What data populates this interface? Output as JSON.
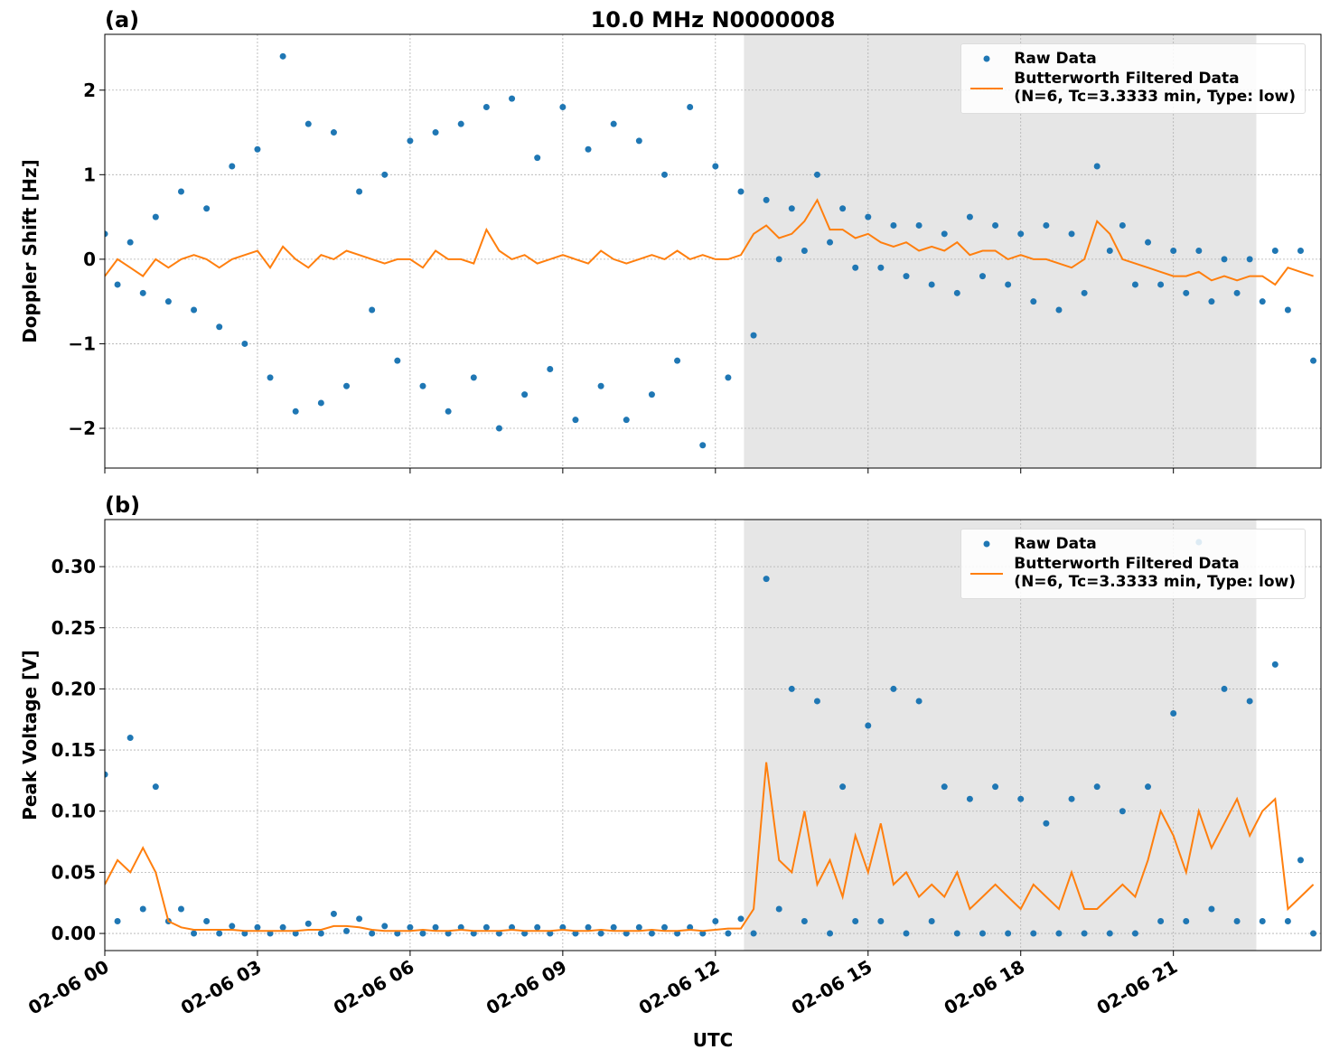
{
  "chart_data": [
    {
      "type": "line",
      "panel_label": "(a)",
      "title": "10.0 MHz N0000008",
      "ylabel": "Doppler Shift [Hz]",
      "xlim": [
        0,
        23.9
      ],
      "ylim": [
        -2.47,
        2.66
      ],
      "xticks": [
        0,
        3,
        6,
        9,
        12,
        15,
        18,
        21
      ],
      "yticks": [
        {
          "value": -2,
          "label": "−2"
        },
        {
          "value": -1,
          "label": "−1"
        },
        0,
        1,
        2
      ],
      "grid": true,
      "legend": "upper right",
      "shaded_span": [
        12.56,
        22.63
      ],
      "shade_color": "#e6e6e6",
      "x": [
        0,
        0.25,
        0.5,
        0.75,
        1,
        1.25,
        1.5,
        1.75,
        2,
        2.25,
        2.5,
        2.75,
        3,
        3.25,
        3.5,
        3.75,
        4,
        4.25,
        4.5,
        4.75,
        5,
        5.25,
        5.5,
        5.75,
        6,
        6.25,
        6.5,
        6.75,
        7,
        7.25,
        7.5,
        7.75,
        8,
        8.25,
        8.5,
        8.75,
        9,
        9.25,
        9.5,
        9.75,
        10,
        10.25,
        10.5,
        10.75,
        11,
        11.25,
        11.5,
        11.75,
        12,
        12.25,
        12.5,
        12.75,
        13,
        13.25,
        13.5,
        13.75,
        14,
        14.25,
        14.5,
        14.75,
        15,
        15.25,
        15.5,
        15.75,
        16,
        16.25,
        16.5,
        16.75,
        17,
        17.25,
        17.5,
        17.75,
        18,
        18.25,
        18.5,
        18.75,
        19,
        19.25,
        19.5,
        19.75,
        20,
        20.25,
        20.5,
        20.75,
        21,
        21.25,
        21.5,
        21.75,
        22,
        22.25,
        22.5,
        22.75,
        23,
        23.25,
        23.5,
        23.75
      ],
      "series": [
        {
          "name": "Raw Data",
          "style": "markers",
          "color": "#1f77b4",
          "values": [
            0.3,
            -0.3,
            0.2,
            -0.4,
            0.5,
            -0.5,
            0.8,
            -0.6,
            0.6,
            -0.8,
            1.1,
            -1.0,
            1.3,
            -1.4,
            2.4,
            -1.8,
            1.6,
            -1.7,
            1.5,
            -1.5,
            0.8,
            -0.6,
            1.0,
            -1.2,
            1.4,
            -1.5,
            1.5,
            -1.8,
            1.6,
            -1.4,
            1.8,
            -2.0,
            1.9,
            -1.6,
            1.2,
            -1.3,
            1.8,
            -1.9,
            1.3,
            -1.5,
            1.6,
            -1.9,
            1.4,
            -1.6,
            1.0,
            -1.2,
            1.8,
            -2.2,
            1.1,
            -1.4,
            0.8,
            -0.9,
            0.7,
            0.0,
            0.6,
            0.1,
            1.0,
            0.2,
            0.6,
            -0.1,
            0.5,
            -0.1,
            0.4,
            -0.2,
            0.4,
            -0.3,
            0.3,
            -0.4,
            0.5,
            -0.2,
            0.4,
            -0.3,
            0.3,
            -0.5,
            0.4,
            -0.6,
            0.3,
            -0.4,
            1.1,
            0.1,
            0.4,
            -0.3,
            0.2,
            -0.3,
            0.1,
            -0.4,
            0.1,
            -0.5,
            0.0,
            -0.4,
            0.0,
            -0.5,
            0.1,
            -0.6,
            0.1,
            -1.2
          ]
        },
        {
          "name": "Butterworth Filtered Data\n(N=6, Tc=3.3333 min, Type: low)",
          "style": "line",
          "color": "#ff7f0e",
          "values": [
            -0.2,
            0.0,
            -0.1,
            -0.2,
            0.0,
            -0.1,
            0.0,
            0.05,
            0.0,
            -0.1,
            0.0,
            0.05,
            0.1,
            -0.1,
            0.15,
            0.0,
            -0.1,
            0.05,
            0.0,
            0.1,
            0.05,
            0.0,
            -0.05,
            0.0,
            0.0,
            -0.1,
            0.1,
            0.0,
            0.0,
            -0.05,
            0.35,
            0.1,
            0.0,
            0.05,
            -0.05,
            0.0,
            0.05,
            0.0,
            -0.05,
            0.1,
            0.0,
            -0.05,
            0.0,
            0.05,
            0.0,
            0.1,
            0.0,
            0.05,
            0.0,
            0.0,
            0.05,
            0.3,
            0.4,
            0.25,
            0.3,
            0.45,
            0.7,
            0.35,
            0.35,
            0.25,
            0.3,
            0.2,
            0.15,
            0.2,
            0.1,
            0.15,
            0.1,
            0.2,
            0.05,
            0.1,
            0.1,
            0.0,
            0.05,
            0.0,
            0.0,
            -0.05,
            -0.1,
            0.0,
            0.45,
            0.3,
            0.0,
            -0.05,
            -0.1,
            -0.15,
            -0.2,
            -0.2,
            -0.15,
            -0.25,
            -0.2,
            -0.25,
            -0.2,
            -0.2,
            -0.3,
            -0.1,
            -0.15,
            -0.2
          ]
        }
      ]
    },
    {
      "type": "line",
      "panel_label": "(b)",
      "ylabel": "Peak Voltage [V]",
      "xlabel": "UTC",
      "xlim": [
        0,
        23.9
      ],
      "ylim": [
        -0.014,
        0.3385
      ],
      "xticks": [
        {
          "value": 0,
          "label": "02-06 00"
        },
        {
          "value": 3,
          "label": "02-06 03"
        },
        {
          "value": 6,
          "label": "02-06 06"
        },
        {
          "value": 9,
          "label": "02-06 09"
        },
        {
          "value": 12,
          "label": "02-06 12"
        },
        {
          "value": 15,
          "label": "02-06 15"
        },
        {
          "value": 18,
          "label": "02-06 18"
        },
        {
          "value": 21,
          "label": "02-06 21"
        }
      ],
      "yticks": [
        {
          "value": 0,
          "label": "0.00"
        },
        0.05,
        {
          "value": 0.1,
          "label": "0.10"
        },
        0.15,
        {
          "value": 0.2,
          "label": "0.20"
        },
        0.25,
        {
          "value": 0.3,
          "label": "0.30"
        }
      ],
      "grid": true,
      "legend": "upper right",
      "shaded_span": [
        12.56,
        22.63
      ],
      "shade_color": "#e6e6e6",
      "x": [
        0,
        0.25,
        0.5,
        0.75,
        1,
        1.25,
        1.5,
        1.75,
        2,
        2.25,
        2.5,
        2.75,
        3,
        3.25,
        3.5,
        3.75,
        4,
        4.25,
        4.5,
        4.75,
        5,
        5.25,
        5.5,
        5.75,
        6,
        6.25,
        6.5,
        6.75,
        7,
        7.25,
        7.5,
        7.75,
        8,
        8.25,
        8.5,
        8.75,
        9,
        9.25,
        9.5,
        9.75,
        10,
        10.25,
        10.5,
        10.75,
        11,
        11.25,
        11.5,
        11.75,
        12,
        12.25,
        12.5,
        12.75,
        13,
        13.25,
        13.5,
        13.75,
        14,
        14.25,
        14.5,
        14.75,
        15,
        15.25,
        15.5,
        15.75,
        16,
        16.25,
        16.5,
        16.75,
        17,
        17.25,
        17.5,
        17.75,
        18,
        18.25,
        18.5,
        18.75,
        19,
        19.25,
        19.5,
        19.75,
        20,
        20.25,
        20.5,
        20.75,
        21,
        21.25,
        21.5,
        21.75,
        22,
        22.25,
        22.5,
        22.75,
        23,
        23.25,
        23.5,
        23.75
      ],
      "series": [
        {
          "name": "Raw Data",
          "style": "markers",
          "color": "#1f77b4",
          "values": [
            0.13,
            0.01,
            0.16,
            0.02,
            0.12,
            0.01,
            0.02,
            0.0,
            0.01,
            0.0,
            0.006,
            0.0,
            0.005,
            0.0,
            0.005,
            0.0,
            0.008,
            0.0,
            0.016,
            0.002,
            0.012,
            0.0,
            0.006,
            0.0,
            0.005,
            0.0,
            0.005,
            0.0,
            0.005,
            0.0,
            0.005,
            0.0,
            0.005,
            0.0,
            0.005,
            0.0,
            0.005,
            0.0,
            0.005,
            0.0,
            0.005,
            0.0,
            0.005,
            0.0,
            0.005,
            0.0,
            0.005,
            0.0,
            0.01,
            0.0,
            0.012,
            0.0,
            0.29,
            0.02,
            0.2,
            0.01,
            0.19,
            0.0,
            0.12,
            0.01,
            0.17,
            0.01,
            0.2,
            0.0,
            0.19,
            0.01,
            0.12,
            0.0,
            0.11,
            0.0,
            0.12,
            0.0,
            0.11,
            0.0,
            0.09,
            0.0,
            0.11,
            0.0,
            0.12,
            0.0,
            0.1,
            0.0,
            0.12,
            0.01,
            0.18,
            0.01,
            0.32,
            0.02,
            0.2,
            0.01,
            0.19,
            0.01,
            0.22,
            0.01,
            0.06,
            0.0
          ]
        },
        {
          "name": "Butterworth Filtered Data\n(N=6, Tc=3.3333 min, Type: low)",
          "style": "line",
          "color": "#ff7f0e",
          "values": [
            0.04,
            0.06,
            0.05,
            0.07,
            0.05,
            0.01,
            0.005,
            0.003,
            0.003,
            0.003,
            0.003,
            0.002,
            0.002,
            0.002,
            0.002,
            0.002,
            0.003,
            0.003,
            0.006,
            0.006,
            0.005,
            0.003,
            0.002,
            0.002,
            0.002,
            0.003,
            0.002,
            0.002,
            0.003,
            0.002,
            0.002,
            0.002,
            0.003,
            0.002,
            0.002,
            0.002,
            0.003,
            0.002,
            0.002,
            0.003,
            0.002,
            0.002,
            0.002,
            0.003,
            0.002,
            0.002,
            0.003,
            0.002,
            0.003,
            0.004,
            0.004,
            0.02,
            0.14,
            0.06,
            0.05,
            0.1,
            0.04,
            0.06,
            0.03,
            0.08,
            0.05,
            0.09,
            0.04,
            0.05,
            0.03,
            0.04,
            0.03,
            0.05,
            0.02,
            0.03,
            0.04,
            0.03,
            0.02,
            0.04,
            0.03,
            0.02,
            0.05,
            0.02,
            0.02,
            0.03,
            0.04,
            0.03,
            0.06,
            0.1,
            0.08,
            0.05,
            0.1,
            0.07,
            0.09,
            0.11,
            0.08,
            0.1,
            0.11,
            0.02,
            0.03,
            0.04
          ]
        }
      ]
    }
  ]
}
